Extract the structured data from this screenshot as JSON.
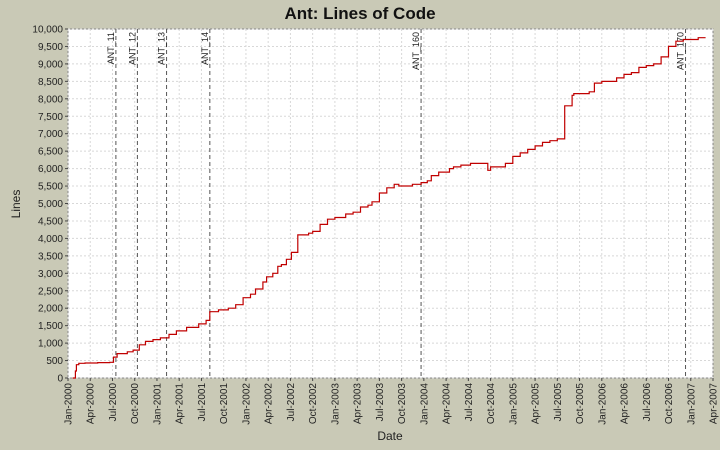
{
  "chart_data": {
    "type": "line",
    "title": "Ant:  Lines of Code",
    "xlabel": "Date",
    "ylabel": "Lines",
    "grid": true,
    "colors": {
      "background": "#c9c9b6",
      "plot_background": "#ffffff",
      "line": "#c00000",
      "grid": "#d8d8d8",
      "marker": "#555555"
    },
    "xlim": [
      "2000-01",
      "2007-04"
    ],
    "ylim": [
      0,
      10000
    ],
    "x_ticks": [
      "Jan-2000",
      "Apr-2000",
      "Jul-2000",
      "Oct-2000",
      "Jan-2001",
      "Apr-2001",
      "Jul-2001",
      "Oct-2001",
      "Jan-2002",
      "Apr-2002",
      "Jul-2002",
      "Oct-2002",
      "Jan-2003",
      "Apr-2003",
      "Jul-2003",
      "Oct-2003",
      "Jan-2004",
      "Apr-2004",
      "Jul-2004",
      "Oct-2004",
      "Jan-2005",
      "Apr-2005",
      "Jul-2005",
      "Oct-2005",
      "Jan-2006",
      "Apr-2006",
      "Jul-2006",
      "Oct-2006",
      "Jan-2007",
      "Apr-2007"
    ],
    "y_ticks": [
      "0",
      "500",
      "1,000",
      "1,500",
      "2,000",
      "2,500",
      "3,000",
      "3,500",
      "4,000",
      "4,500",
      "5,000",
      "5,500",
      "6,000",
      "6,500",
      "7,000",
      "7,500",
      "8,000",
      "8,500",
      "9,000",
      "9,500",
      "10,000"
    ],
    "markers": [
      {
        "label": "ANT_11",
        "x": "2000-07-15"
      },
      {
        "label": "ANT_12",
        "x": "2000-10-12"
      },
      {
        "label": "ANT_13",
        "x": "2001-02-10"
      },
      {
        "label": "ANT_14",
        "x": "2001-08-05"
      },
      {
        "label": "ANT_160",
        "x": "2003-12-20"
      },
      {
        "label": "ANT_170",
        "x": "2006-12-10"
      }
    ],
    "series": [
      {
        "x": [
          "2000-01-20",
          "2000-02-01",
          "2000-02-05",
          "2000-02-15",
          "2000-03-10",
          "2000-05-01",
          "2000-06-20",
          "2000-07-05",
          "2000-07-20",
          "2000-09-01",
          "2000-09-25",
          "2000-10-20",
          "2000-11-15",
          "2000-12-15",
          "2001-01-15",
          "2001-02-20",
          "2001-03-20",
          "2001-05-01",
          "2001-06-20",
          "2001-07-20",
          "2001-08-05",
          "2001-09-10",
          "2001-10-20",
          "2001-11-20",
          "2001-12-20",
          "2002-01-20",
          "2002-02-10",
          "2002-03-10",
          "2002-03-25",
          "2002-04-20",
          "2002-05-10",
          "2002-05-25",
          "2002-06-10",
          "2002-06-15",
          "2002-07-05",
          "2002-08-01",
          "2002-09-15",
          "2002-10-01",
          "2002-11-01",
          "2002-12-01",
          "2003-01-01",
          "2003-02-15",
          "2003-03-15",
          "2003-04-15",
          "2003-05-15",
          "2003-06-01",
          "2003-07-01",
          "2003-08-01",
          "2003-09-01",
          "2003-09-20",
          "2003-10-15",
          "2003-11-15",
          "2003-12-20",
          "2004-01-15",
          "2004-02-01",
          "2004-03-01",
          "2004-04-15",
          "2004-05-01",
          "2004-06-01",
          "2004-07-10",
          "2004-08-10",
          "2004-09-20",
          "2004-10-01",
          "2004-11-01",
          "2004-12-01",
          "2005-01-01",
          "2005-02-01",
          "2005-03-01",
          "2005-04-01",
          "2005-05-01",
          "2005-06-01",
          "2005-07-01",
          "2005-08-01",
          "2005-09-01",
          "2005-09-08",
          "2005-10-01",
          "2005-11-10",
          "2005-12-01",
          "2006-01-01",
          "2006-02-01",
          "2006-03-01",
          "2006-04-01",
          "2006-05-01",
          "2006-06-01",
          "2006-07-01",
          "2006-08-01",
          "2006-09-01",
          "2006-10-01",
          "2006-11-01",
          "2006-12-01",
          "2007-01-01",
          "2007-02-01",
          "2007-03-01"
        ],
        "y": [
          0,
          200,
          380,
          420,
          430,
          440,
          450,
          600,
          700,
          750,
          800,
          950,
          1050,
          1100,
          1150,
          1250,
          1350,
          1450,
          1550,
          1650,
          1900,
          1950,
          2000,
          2100,
          2300,
          2400,
          2550,
          2750,
          2900,
          3000,
          3200,
          3250,
          3250,
          3400,
          3600,
          4100,
          4150,
          4200,
          4400,
          4550,
          4600,
          4700,
          4750,
          4900,
          4950,
          5050,
          5300,
          5450,
          5550,
          5500,
          5500,
          5550,
          5600,
          5650,
          5800,
          5900,
          6000,
          6050,
          6100,
          6150,
          6150,
          5950,
          6050,
          6050,
          6150,
          6350,
          6450,
          6550,
          6650,
          6750,
          6800,
          6850,
          7800,
          8100,
          8150,
          8150,
          8200,
          8450,
          8500,
          8500,
          8600,
          8700,
          8750,
          8900,
          8950,
          9000,
          9200,
          9500,
          9650,
          9700,
          9700,
          9750,
          9750
        ]
      }
    ]
  }
}
